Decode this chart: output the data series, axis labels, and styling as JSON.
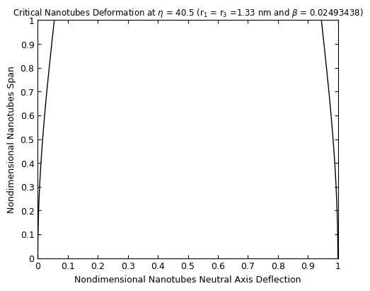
{
  "title": "Critical Nanotubes Deformation at η = 40.5 (r₁ = r₃ =1.33 nm and β = 0.02493438)",
  "xlabel": "Nondimensional Nanotubes Neutral Axis Deflection",
  "ylabel": "Nondimensional Nanotubes Span",
  "xlim": [
    0,
    1
  ],
  "ylim": [
    0,
    1
  ],
  "xticks": [
    0,
    0.1,
    0.2,
    0.3,
    0.4,
    0.5,
    0.6,
    0.7,
    0.8,
    0.9,
    1.0
  ],
  "yticks": [
    0,
    0.1,
    0.2,
    0.3,
    0.4,
    0.5,
    0.6,
    0.7,
    0.8,
    0.9,
    1.0
  ],
  "line_color": "#000000",
  "line_width": 1.0,
  "bg_color": "#ffffff",
  "title_fontsize": 8.5,
  "label_fontsize": 9,
  "tick_fontsize": 9,
  "x_max_left": 0.055,
  "n_points": 2000
}
